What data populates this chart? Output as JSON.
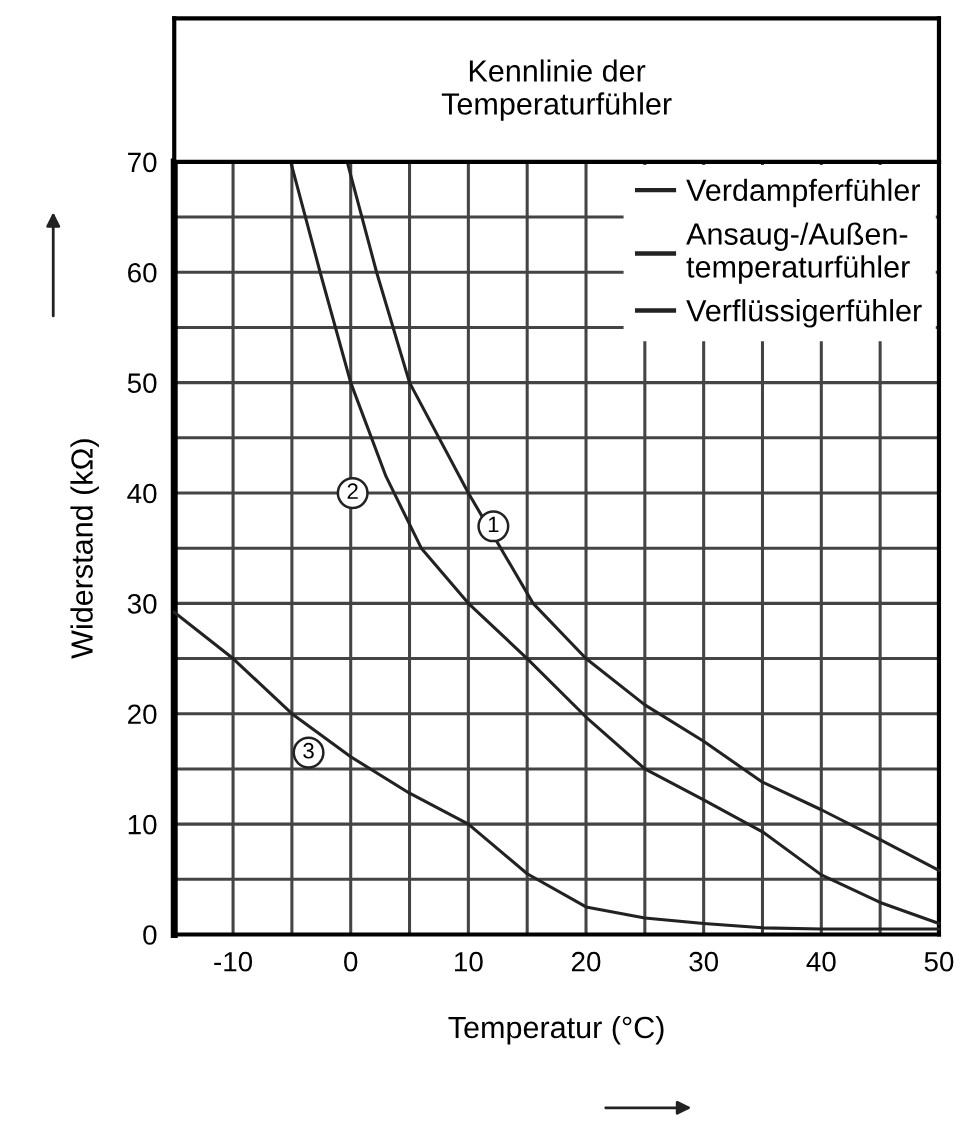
{
  "chart_data": {
    "type": "line",
    "title": "Kennlinie der\nTemperaturfühler",
    "xlabel": "Temperatur (°C)",
    "ylabel": "Widerstand (kΩ)",
    "series": [
      {
        "name": "Verdampferfühler",
        "color": "#222222",
        "x": [
          -0.3,
          2.2,
          5,
          10,
          15.5,
          20,
          25,
          30,
          35,
          40,
          45,
          50
        ],
        "values": [
          70,
          60,
          50,
          40,
          30,
          25,
          20.8,
          17.5,
          13.8,
          11.3,
          8.6,
          5.8
        ]
      },
      {
        "name": "Ansaug-/Außen-\ntemperaturfühler",
        "color": "#222222",
        "x": [
          -5.1,
          -2.6,
          0,
          3,
          6,
          10,
          15,
          20,
          25,
          30,
          35,
          40,
          45,
          50
        ],
        "values": [
          70,
          60,
          50,
          41.5,
          35,
          30,
          25,
          19.7,
          15,
          12.2,
          9.3,
          5.4,
          2.9,
          1
        ]
      },
      {
        "name": "Verflüssigerfühler",
        "color": "#222222",
        "x": [
          -15,
          -10,
          -5,
          0,
          5,
          10,
          15,
          20,
          25,
          30,
          35,
          40,
          45,
          50
        ],
        "values": [
          29.2,
          25,
          20,
          16.1,
          12.8,
          10,
          5.5,
          2.5,
          1.5,
          1,
          0.6,
          0.5,
          0.5,
          0.5
        ]
      }
    ],
    "annotations": [
      "1",
      "2",
      "3"
    ],
    "xlim": [
      -15,
      50
    ],
    "ylim": [
      0,
      70
    ],
    "xticks": [
      {
        "value": -15,
        "label": null
      },
      -10,
      {
        "value": -5,
        "label": null
      },
      0,
      {
        "value": 5,
        "label": null
      },
      10,
      {
        "value": 15,
        "label": null
      },
      20,
      {
        "value": 25,
        "label": null
      },
      30,
      {
        "value": 35,
        "label": null
      },
      40,
      {
        "value": 45,
        "label": null
      },
      50
    ],
    "yticks": [
      0,
      {
        "value": 5,
        "label": null
      },
      10,
      {
        "value": 15,
        "label": null
      },
      20,
      {
        "value": 25,
        "label": null
      },
      30,
      {
        "value": 35,
        "label": null
      },
      40,
      {
        "value": 45,
        "label": null
      },
      50,
      {
        "value": 55,
        "label": null
      },
      60,
      {
        "value": 65,
        "label": null
      },
      70
    ],
    "grid": true,
    "legend": "top right",
    "marker": "none",
    "line_style": "solid"
  }
}
